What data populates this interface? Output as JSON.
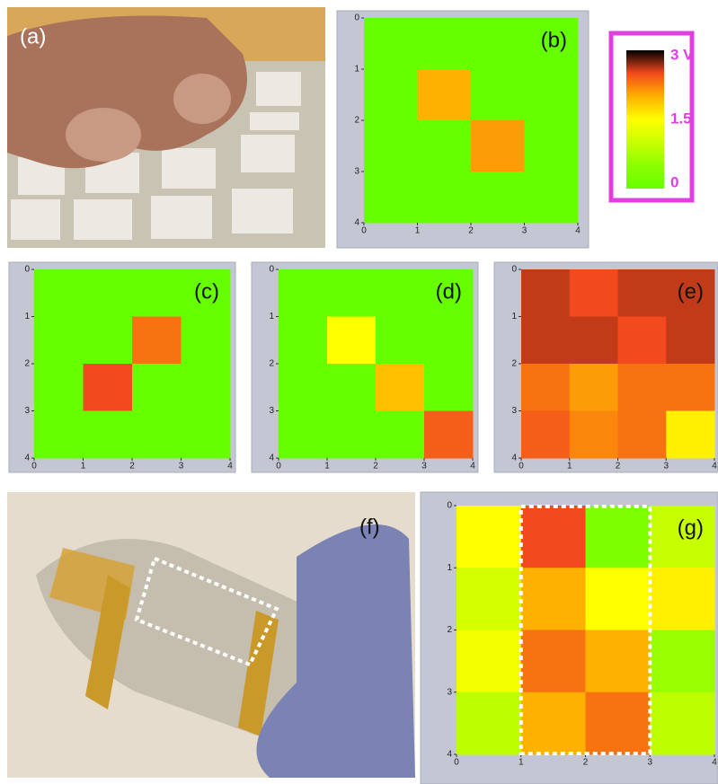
{
  "photos": {
    "a": "(a)",
    "f": "(f)"
  },
  "colorbar": {
    "lim": [
      0,
      3
    ],
    "ticks": [
      {
        "value": 3,
        "label": "3 V"
      },
      1.5,
      0
    ],
    "colors": [
      "#66ff00",
      "#8cff00",
      "#c8ff00",
      "#ffff00",
      "#ffb000",
      "#f24a1e",
      "#000000"
    ]
  },
  "chart_data": [
    {
      "type": "heatmap",
      "title": "(b)",
      "xlim": [
        0,
        4
      ],
      "ylim": [
        0,
        4
      ],
      "xticks": [
        0,
        1,
        2,
        3,
        4
      ],
      "yticks": [
        0,
        1,
        2,
        3,
        4
      ],
      "y_inverted": true,
      "z": [
        [
          0,
          0,
          0,
          0
        ],
        [
          0,
          2.0,
          0,
          0
        ],
        [
          0,
          0,
          2.1,
          0
        ],
        [
          0,
          0,
          0,
          0
        ]
      ]
    },
    {
      "type": "heatmap",
      "title": "(c)",
      "xlim": [
        0,
        4
      ],
      "ylim": [
        0,
        4
      ],
      "xticks": [
        0,
        1,
        2,
        3,
        4
      ],
      "yticks": [
        0,
        1,
        2,
        3,
        4
      ],
      "y_inverted": true,
      "z": [
        [
          0,
          0,
          0,
          0
        ],
        [
          0,
          0,
          2.3,
          0
        ],
        [
          0,
          2.5,
          0,
          0
        ],
        [
          0,
          0,
          0,
          0
        ]
      ]
    },
    {
      "type": "heatmap",
      "title": "(d)",
      "xlim": [
        0,
        4
      ],
      "ylim": [
        0,
        4
      ],
      "xticks": [
        0,
        1,
        2,
        3,
        4
      ],
      "yticks": [
        0,
        1,
        2,
        3,
        4
      ],
      "y_inverted": true,
      "z": [
        [
          0,
          0,
          0,
          0
        ],
        [
          0,
          1.5,
          0,
          0
        ],
        [
          0,
          0,
          1.9,
          0
        ],
        [
          0,
          0,
          0,
          2.4
        ]
      ]
    },
    {
      "type": "heatmap",
      "title": "(e)",
      "xlim": [
        0,
        4
      ],
      "ylim": [
        0,
        4
      ],
      "xticks": [
        0,
        1,
        2,
        3,
        4
      ],
      "yticks": [
        0,
        1,
        2,
        3,
        4
      ],
      "y_inverted": true,
      "z": [
        [
          2.6,
          2.5,
          2.6,
          2.6
        ],
        [
          2.6,
          2.6,
          2.5,
          2.6
        ],
        [
          2.3,
          2.1,
          2.3,
          2.3
        ],
        [
          2.4,
          2.2,
          2.3,
          1.6
        ]
      ]
    },
    {
      "type": "heatmap",
      "title": "(g)",
      "xlim": [
        0,
        4
      ],
      "ylim": [
        0,
        4
      ],
      "xticks": [
        0,
        1,
        2,
        3,
        4
      ],
      "yticks": [
        0,
        1,
        2,
        3,
        4
      ],
      "y_inverted": true,
      "highlight_x": [
        1,
        3
      ],
      "z": [
        [
          1.5,
          2.5,
          0.3,
          1.0
        ],
        [
          1.1,
          2.0,
          1.5,
          1.6
        ],
        [
          1.4,
          2.3,
          2.0,
          0.6
        ],
        [
          0.9,
          2.0,
          2.3,
          0.9
        ]
      ]
    }
  ]
}
